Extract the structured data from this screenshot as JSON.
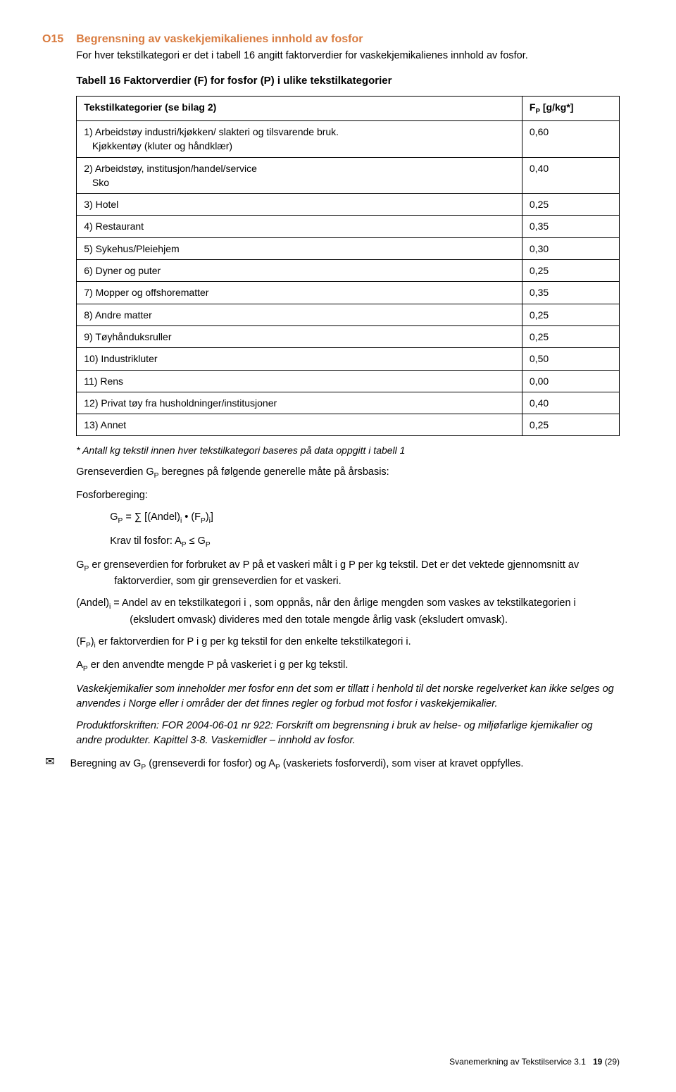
{
  "section_code": "O15",
  "heading": "Begrensning av vaskekjemikalienes innhold av fosfor",
  "intro": "For hver tekstilkategori er det i tabell 16 angitt faktorverdier for vaskekjemikalienes innhold av fosfor.",
  "table_caption": "Tabell 16  Faktorverdier (F) for fosfor (P) i ulike tekstilkategorier",
  "table": {
    "header_left": "Tekstilkategorier (se bilag 2)",
    "header_right_html": "F<sub>P</sub> [g/kg*]",
    "rows": [
      {
        "l": "1) Arbeidstøy industri/kjøkken/ slakteri og tilsvarende bruk.\n   Kjøkkentøy (kluter og håndklær)",
        "r": "0,60"
      },
      {
        "l": "2) Arbeidstøy, institusjon/handel/service\n   Sko",
        "r": "0,40"
      },
      {
        "l": "3) Hotel",
        "r": "0,25"
      },
      {
        "l": "4) Restaurant",
        "r": "0,35"
      },
      {
        "l": "5) Sykehus/Pleiehjem",
        "r": "0,30"
      },
      {
        "l": "6) Dyner og puter",
        "r": "0,25"
      },
      {
        "l": "7) Mopper og offshorematter",
        "r": "0,35"
      },
      {
        "l": "8) Andre matter",
        "r": "0,25"
      },
      {
        "l": "9) Tøyhånduksruller",
        "r": "0,25"
      },
      {
        "l": "10) Industrikluter",
        "r": "0,50"
      },
      {
        "l": "11) Rens",
        "r": "0,00"
      },
      {
        "l": "12) Privat tøy fra husholdninger/institusjoner",
        "r": "0,40"
      },
      {
        "l": "13) Annet",
        "r": "0,25"
      }
    ]
  },
  "table_footnote": "* Antall kg tekstil innen hver tekstilkategori baseres på data oppgitt i tabell 1",
  "p_grenseverdien_html": "Grenseverdien G<sub>P</sub> beregnes på følgende generelle måte på årsbasis:",
  "p_fosforberegning": "Fosforbereging:",
  "p_formula_html": "G<sub>P</sub> = ∑ [(Andel)<sub>i</sub> • (F<sub>P</sub>)<sub>i</sub>]",
  "p_krav_html": "Krav til fosfor: A<sub>P</sub> ≤ G<sub>P</sub>",
  "p_gp_html": "G<sub>P</sub> er grenseverdien for forbruket av P på et vaskeri målt i g P per kg tekstil. Det er det vektede gjennomsnitt av faktorverdier, som gir grenseverdien for et vaskeri.",
  "p_andel_html": "(Andel)<sub>i</sub> = Andel av en tekstilkategori i , som oppnås, når den årlige mengden som vaskes av tekstilkategorien i (eksludert omvask) divideres med den totale mengde årlig vask (eksludert omvask).",
  "p_fp_html": "(F<sub>P</sub>)<sub>i</sub> er faktorverdien for P i g per kg tekstil for den enkelte tekstilkategori i.",
  "p_ap_html": "A<sub>P</sub> er den anvendte mengde P på vaskeriet i g per kg tekstil.",
  "p_italic1": "Vaskekjemikalier som inneholder mer fosfor enn det som er tillatt i henhold til det norske regelverket kan ikke selges og anvendes i Norge eller i områder der det finnes regler og forbud mot fosfor i vaskekjemikalier.",
  "p_italic2": "Produktforskriften: FOR 2004-06-01 nr 922: Forskrift om begrensning i bruk av helse- og miljøfarlige kjemikalier og andre produkter. Kapittel 3-8. Vaskemidler – innhold av fosfor.",
  "p_envelope_html": "Beregning av G<sub>P</sub> (grenseverdi for fosfor) og A<sub>P</sub> (vaskeriets fosforverdi), som viser at kravet oppfylles.",
  "footer": {
    "title": "Svanemerkning av Tekstilservice 3.1",
    "page": "19",
    "total": "(29)"
  }
}
